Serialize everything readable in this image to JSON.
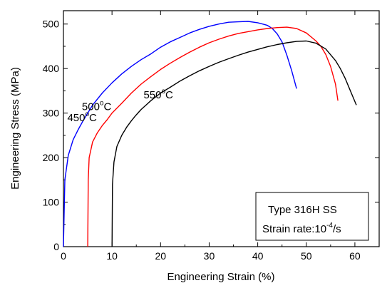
{
  "chart_data": {
    "type": "line",
    "xlabel": "Engineering Strain (%)",
    "ylabel": "Engineering Stress (MPa)",
    "xlim": [
      0,
      65
    ],
    "ylim": [
      0,
      530
    ],
    "xticks": [
      0,
      10,
      20,
      30,
      40,
      50,
      60
    ],
    "yticks": [
      0,
      100,
      200,
      300,
      400,
      500
    ],
    "grid": false,
    "series": [
      {
        "color": "#0000ff",
        "x": [
          0,
          0.3,
          1,
          2,
          3,
          4,
          5,
          6,
          8,
          10,
          12,
          14,
          16,
          18,
          20,
          22,
          24,
          26,
          28,
          30,
          32,
          34,
          36,
          38,
          40,
          41,
          42,
          43,
          44,
          45,
          46,
          47,
          48
        ],
        "y": [
          0,
          150,
          205,
          240,
          262,
          282,
          300,
          318,
          345,
          368,
          388,
          405,
          420,
          433,
          448,
          460,
          470,
          480,
          488,
          495,
          500,
          504,
          505,
          506,
          503,
          500,
          497,
          490,
          478,
          460,
          430,
          395,
          355
        ]
      },
      {
        "color": "#ff0000",
        "x": [
          5,
          5.1,
          5.3,
          6,
          7,
          8,
          9,
          10,
          12,
          14,
          16,
          18,
          20,
          22,
          24,
          26,
          28,
          30,
          32,
          34,
          36,
          38,
          40,
          42,
          44,
          46,
          48,
          50,
          52,
          53,
          54,
          55,
          56,
          56.5
        ],
        "y": [
          0,
          150,
          200,
          235,
          256,
          272,
          285,
          300,
          322,
          345,
          365,
          382,
          398,
          412,
          425,
          437,
          448,
          458,
          466,
          473,
          479,
          483,
          487,
          490,
          492,
          493,
          490,
          480,
          462,
          450,
          432,
          405,
          365,
          328
        ]
      },
      {
        "color": "#000000",
        "x": [
          10,
          10.1,
          10.4,
          11,
          12,
          13,
          14,
          15,
          16,
          17,
          18,
          20,
          22,
          24,
          26,
          28,
          30,
          32,
          34,
          36,
          38,
          40,
          42,
          44,
          46,
          48,
          50,
          52,
          54,
          56,
          57,
          58,
          59,
          60.3
        ],
        "y": [
          0,
          140,
          190,
          225,
          250,
          268,
          283,
          296,
          308,
          318,
          328,
          345,
          358,
          372,
          384,
          395,
          405,
          414,
          422,
          430,
          437,
          443,
          449,
          454,
          458,
          461,
          462,
          457,
          444,
          418,
          400,
          378,
          352,
          318
        ]
      }
    ],
    "annotations": [
      {
        "label": "450",
        "unit": "C",
        "x": 0.8,
        "y": 282
      },
      {
        "label": "500",
        "unit": "C",
        "x": 3.8,
        "y": 307
      },
      {
        "label": "550",
        "unit": "C",
        "x": 16.5,
        "y": 333
      }
    ],
    "note_box": {
      "line1": "Type 316H SS",
      "line2_prefix": "Strain rate:10",
      "line2_exp": "-4",
      "line2_suffix": "/s"
    }
  }
}
